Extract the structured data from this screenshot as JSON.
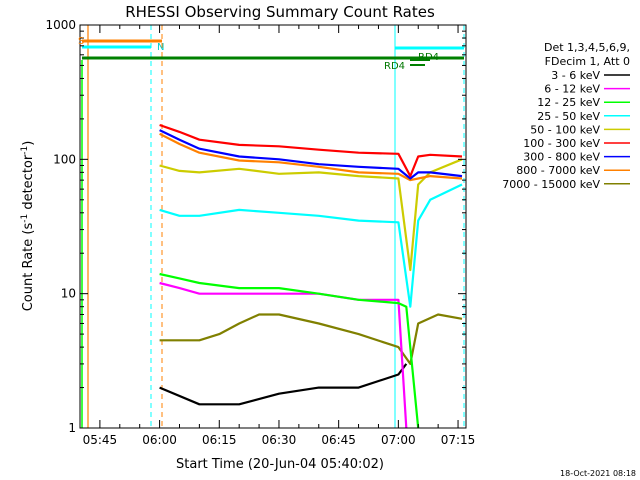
{
  "chart_data": {
    "type": "line",
    "title": "RHESSI Observing Summary Count Rates",
    "xlabel": "Start Time (20-Jun-04 05:40:02)",
    "ylabel": "Count Rate (s^-1 detector^-1)",
    "ylabel_main": "Count Rate (s",
    "ylabel_sup1": "-1",
    "ylabel_mid": " detector",
    "ylabel_sup2": "-1",
    "ylabel_end": ")",
    "y_scale": "log",
    "ylim": [
      1,
      1000
    ],
    "xlim": [
      "05:40",
      "07:17"
    ],
    "x_ticks": [
      "05:45",
      "06:00",
      "06:15",
      "06:30",
      "06:45",
      "07:00",
      "07:15"
    ],
    "y_ticks": [
      "1",
      "10",
      "100",
      "1000"
    ],
    "legend_header": [
      "Det 1,3,4,5,6,9,",
      "FDecim 1, Att 0"
    ],
    "legend": [
      {
        "name": "3 - 6 keV",
        "color": "#000000"
      },
      {
        "name": "6 - 12 keV",
        "color": "#ff00ff"
      },
      {
        "name": "12 - 25 keV",
        "color": "#00ff00"
      },
      {
        "name": "25 - 50 keV",
        "color": "#00ffff"
      },
      {
        "name": "50 - 100 keV",
        "color": "#cccc00"
      },
      {
        "name": "100 - 300 keV",
        "color": "#ff0000"
      },
      {
        "name": "300 - 800 keV",
        "color": "#0000ff"
      },
      {
        "name": "800 - 7000 keV",
        "color": "#ff8000"
      },
      {
        "name": "7000 - 15000 keV",
        "color": "#808000"
      }
    ],
    "flags": {
      "S_label": "S",
      "N_label": "N",
      "RD4_label_1": "RD4",
      "RD4_label_2": "RD4"
    },
    "series": [
      {
        "name": "100 - 300 keV",
        "color": "#ff0000",
        "x": [
          "06:00",
          "06:05",
          "06:10",
          "06:20",
          "06:30",
          "06:40",
          "06:50",
          "07:00",
          "07:03",
          "07:05",
          "07:08",
          "07:16"
        ],
        "y": [
          180,
          160,
          140,
          128,
          125,
          118,
          112,
          110,
          75,
          105,
          108,
          105
        ]
      },
      {
        "name": "300 - 800 keV",
        "color": "#0000ff",
        "x": [
          "06:00",
          "06:05",
          "06:10",
          "06:20",
          "06:30",
          "06:40",
          "06:50",
          "07:00",
          "07:03",
          "07:05",
          "07:08",
          "07:16"
        ],
        "y": [
          165,
          140,
          120,
          105,
          100,
          92,
          88,
          85,
          72,
          80,
          80,
          75
        ]
      },
      {
        "name": "800 - 7000 keV",
        "color": "#ff8000",
        "x": [
          "06:00",
          "06:05",
          "06:10",
          "06:20",
          "06:30",
          "06:40",
          "06:50",
          "07:00",
          "07:03",
          "07:05",
          "07:08",
          "07:16"
        ],
        "y": [
          155,
          130,
          112,
          98,
          95,
          88,
          80,
          78,
          70,
          72,
          75,
          72
        ]
      },
      {
        "name": "50 - 100 keV",
        "color": "#cccc00",
        "x": [
          "06:00",
          "06:05",
          "06:10",
          "06:20",
          "06:30",
          "06:40",
          "06:50",
          "07:00",
          "07:03",
          "07:05",
          "07:08",
          "07:16"
        ],
        "y": [
          90,
          82,
          80,
          85,
          78,
          80,
          75,
          72,
          15,
          65,
          80,
          100
        ]
      },
      {
        "name": "25 - 50 keV",
        "color": "#00ffff",
        "x": [
          "06:00",
          "06:05",
          "06:10",
          "06:20",
          "06:30",
          "06:40",
          "06:50",
          "07:00",
          "07:03",
          "07:05",
          "07:08",
          "07:16"
        ],
        "y": [
          42,
          38,
          38,
          42,
          40,
          38,
          35,
          34,
          8,
          35,
          50,
          65
        ]
      },
      {
        "name": "12 - 25 keV",
        "color": "#00ff00",
        "x": [
          "06:00",
          "06:05",
          "06:10",
          "06:20",
          "06:30",
          "06:40",
          "06:50",
          "07:00",
          "07:02",
          "07:05"
        ],
        "y": [
          14,
          13,
          12,
          11,
          11,
          10,
          9,
          8.5,
          8,
          1
        ]
      },
      {
        "name": "6 - 12 keV",
        "color": "#ff00ff",
        "x": [
          "06:00",
          "06:05",
          "06:10",
          "06:20",
          "06:30",
          "06:40",
          "06:50",
          "07:00",
          "07:02"
        ],
        "y": [
          12,
          11,
          10,
          10,
          10,
          10,
          9,
          9,
          1
        ]
      },
      {
        "name": "7000 - 15000 keV",
        "color": "#808000",
        "x": [
          "06:00",
          "06:05",
          "06:10",
          "06:15",
          "06:20",
          "06:25",
          "06:30",
          "06:40",
          "06:50",
          "07:00",
          "07:03",
          "07:05",
          "07:10",
          "07:16"
        ],
        "y": [
          4.5,
          4.5,
          4.5,
          5,
          6,
          7,
          7,
          6,
          5,
          4,
          3,
          6,
          7,
          6.5
        ]
      },
      {
        "name": "3 - 6 keV",
        "color": "#000000",
        "x": [
          "06:00",
          "06:10",
          "06:20",
          "06:30",
          "06:40",
          "06:50",
          "07:00",
          "07:02"
        ],
        "y": [
          2,
          1.5,
          1.5,
          1.8,
          2,
          2,
          2.5,
          3
        ]
      }
    ]
  },
  "timestamp": "18-Oct-2021 08:18"
}
